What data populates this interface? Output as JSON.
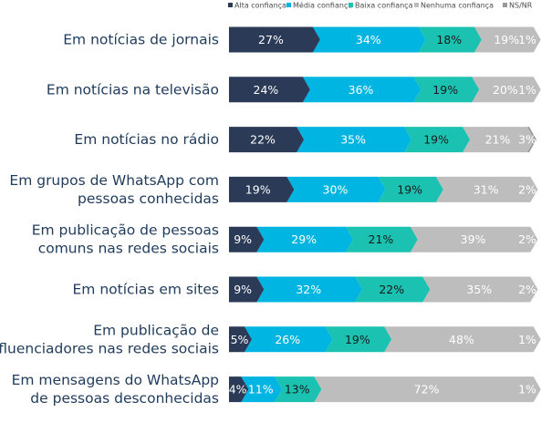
{
  "chart_data": {
    "type": "bar",
    "orientation": "horizontal",
    "stacked": true,
    "percent_suffix": "%",
    "legend_position": "top-right",
    "grid": false,
    "colors": [
      "#2a3a57",
      "#00b5e2",
      "#1cc2b1",
      "#bdbdbd",
      "#999999"
    ],
    "label_colors": [
      "#ffffff",
      "#ffffff",
      "#1a1a1a",
      "#ffffff",
      "#ffffff"
    ],
    "categories": [
      [
        "Em notícias de jornais"
      ],
      [
        "Em notícias na televisão"
      ],
      [
        "Em notícias no rádio"
      ],
      [
        "Em grupos de WhatsApp com",
        "pessoas conhecidas"
      ],
      [
        "Em publicação de pessoas",
        "comuns nas redes sociais"
      ],
      [
        "Em notícias em sites"
      ],
      [
        "Em publicação de",
        "influenciadores nas redes sociais"
      ],
      [
        "Em mensagens do WhatsApp",
        "de pessoas desconhecidas"
      ]
    ],
    "series": [
      {
        "name": "Alta confiança",
        "values": [
          27,
          24,
          22,
          19,
          9,
          9,
          5,
          4
        ]
      },
      {
        "name": "Média confiança",
        "values": [
          34,
          36,
          35,
          30,
          29,
          32,
          26,
          11
        ]
      },
      {
        "name": "Baixa confiança",
        "values": [
          18,
          19,
          19,
          19,
          21,
          22,
          19,
          13
        ]
      },
      {
        "name": "Nenhuma confiança",
        "values": [
          19,
          20,
          21,
          31,
          39,
          35,
          48,
          72
        ]
      },
      {
        "name": "NS/NR",
        "values": [
          1,
          1,
          3,
          2,
          2,
          2,
          1,
          1
        ]
      }
    ]
  }
}
